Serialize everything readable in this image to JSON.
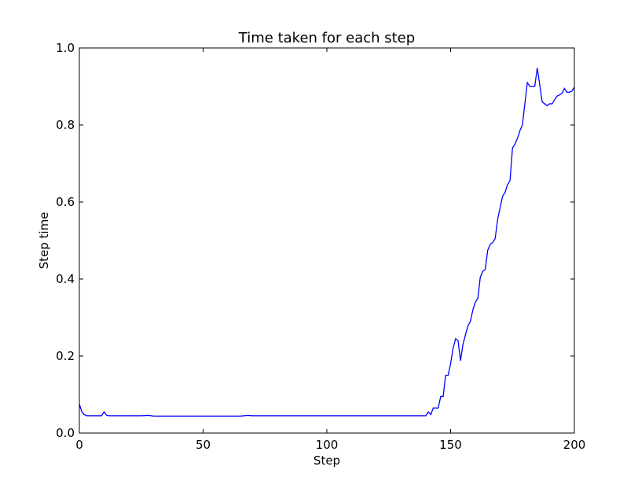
{
  "chart_data": {
    "type": "line",
    "title": "Time taken for each step",
    "xlabel": "Step",
    "ylabel": "Step time",
    "xlim": [
      0,
      200
    ],
    "ylim": [
      0.0,
      1.0
    ],
    "xticks": [
      0,
      50,
      100,
      150,
      200
    ],
    "xtick_labels": [
      "0",
      "50",
      "100",
      "150",
      "200"
    ],
    "yticks": [
      0.0,
      0.2,
      0.4,
      0.6,
      0.8,
      1.0
    ],
    "ytick_labels": [
      "0.0",
      "0.2",
      "0.4",
      "0.6",
      "0.8",
      "1.0"
    ],
    "grid": false,
    "line_color": "#0000ff",
    "series": [
      {
        "x": [
          0,
          1,
          2,
          3,
          4,
          5,
          6,
          7,
          8,
          9,
          10,
          11,
          12,
          15,
          20,
          25,
          28,
          30,
          35,
          40,
          45,
          50,
          55,
          60,
          65,
          68,
          70,
          75,
          80,
          85,
          90,
          95,
          100,
          105,
          110,
          115,
          120,
          125,
          130,
          135,
          140,
          141,
          142,
          143,
          145,
          146,
          147,
          148,
          149,
          150,
          151,
          152,
          153,
          154,
          155,
          156,
          157,
          158,
          159,
          160,
          161,
          162,
          163,
          164,
          165,
          166,
          167,
          168,
          169,
          170,
          171,
          172,
          173,
          174,
          175,
          176,
          177,
          178,
          179,
          180,
          181,
          182,
          183,
          184,
          185,
          186,
          187,
          188,
          189,
          190,
          191,
          192,
          193,
          194,
          195,
          196,
          197,
          198,
          199,
          200
        ],
        "y": [
          0.075,
          0.055,
          0.048,
          0.045,
          0.045,
          0.045,
          0.045,
          0.045,
          0.045,
          0.045,
          0.055,
          0.046,
          0.045,
          0.045,
          0.045,
          0.045,
          0.046,
          0.044,
          0.044,
          0.044,
          0.044,
          0.044,
          0.044,
          0.044,
          0.044,
          0.046,
          0.045,
          0.045,
          0.045,
          0.045,
          0.045,
          0.045,
          0.045,
          0.045,
          0.045,
          0.045,
          0.045,
          0.045,
          0.045,
          0.045,
          0.045,
          0.055,
          0.048,
          0.065,
          0.065,
          0.095,
          0.095,
          0.15,
          0.15,
          0.18,
          0.22,
          0.245,
          0.24,
          0.188,
          0.23,
          0.255,
          0.278,
          0.29,
          0.32,
          0.34,
          0.35,
          0.405,
          0.42,
          0.425,
          0.475,
          0.49,
          0.495,
          0.505,
          0.555,
          0.585,
          0.615,
          0.625,
          0.645,
          0.655,
          0.74,
          0.75,
          0.765,
          0.785,
          0.8,
          0.855,
          0.91,
          0.9,
          0.9,
          0.9,
          0.948,
          0.905,
          0.86,
          0.855,
          0.85,
          0.855,
          0.855,
          0.865,
          0.875,
          0.878,
          0.882,
          0.895,
          0.885,
          0.885,
          0.888,
          0.898
        ]
      }
    ]
  }
}
